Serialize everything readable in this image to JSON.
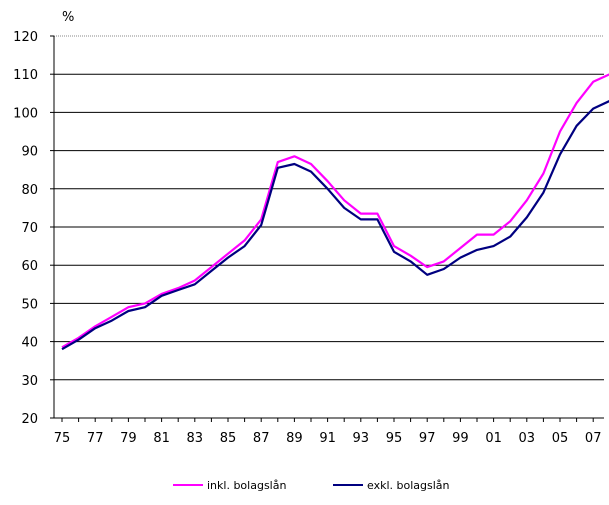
{
  "chart_data": {
    "type": "line",
    "y_unit_label": "%",
    "ylim": [
      20,
      120
    ],
    "y_ticks": [
      20,
      30,
      40,
      50,
      60,
      70,
      80,
      90,
      100,
      110,
      120
    ],
    "x": [
      1975,
      1976,
      1977,
      1978,
      1979,
      1980,
      1981,
      1982,
      1983,
      1984,
      1985,
      1986,
      1987,
      1988,
      1989,
      1990,
      1991,
      1992,
      1993,
      1994,
      1995,
      1996,
      1997,
      1998,
      1999,
      2000,
      2001,
      2002,
      2003,
      2004,
      2005,
      2006,
      2007,
      2008
    ],
    "x_tick_labels": [
      "75",
      "77",
      "79",
      "81",
      "83",
      "85",
      "87",
      "89",
      "91",
      "93",
      "95",
      "97",
      "99",
      "01",
      "03",
      "05",
      "07"
    ],
    "x_tick_years": [
      1975,
      1977,
      1979,
      1981,
      1983,
      1985,
      1987,
      1989,
      1991,
      1993,
      1995,
      1997,
      1999,
      2001,
      2003,
      2005,
      2007
    ],
    "grid": "horizontal",
    "legend_position": "bottom",
    "series": [
      {
        "name": "inkl. bolagslån",
        "color": "#ff00ff",
        "values": [
          38.5,
          41,
          44,
          46.5,
          49,
          50,
          52.5,
          54,
          56,
          59.5,
          63,
          66.5,
          72,
          87,
          88.5,
          86.5,
          82,
          77,
          73.5,
          73.5,
          65,
          62.5,
          59.5,
          61,
          64.5,
          68,
          68,
          71.5,
          77,
          84,
          95,
          102.5,
          108,
          110
        ]
      },
      {
        "name": "exkl. bolagslån",
        "color": "#000080",
        "values": [
          38,
          40.5,
          43.5,
          45.5,
          48,
          49,
          52,
          53.5,
          55,
          58.5,
          62,
          65,
          70.5,
          85.5,
          86.5,
          84.5,
          80,
          75,
          72,
          72,
          63.5,
          61,
          57.5,
          59,
          62,
          64,
          65,
          67.5,
          72.5,
          79,
          89,
          96.5,
          101,
          103
        ]
      }
    ]
  }
}
